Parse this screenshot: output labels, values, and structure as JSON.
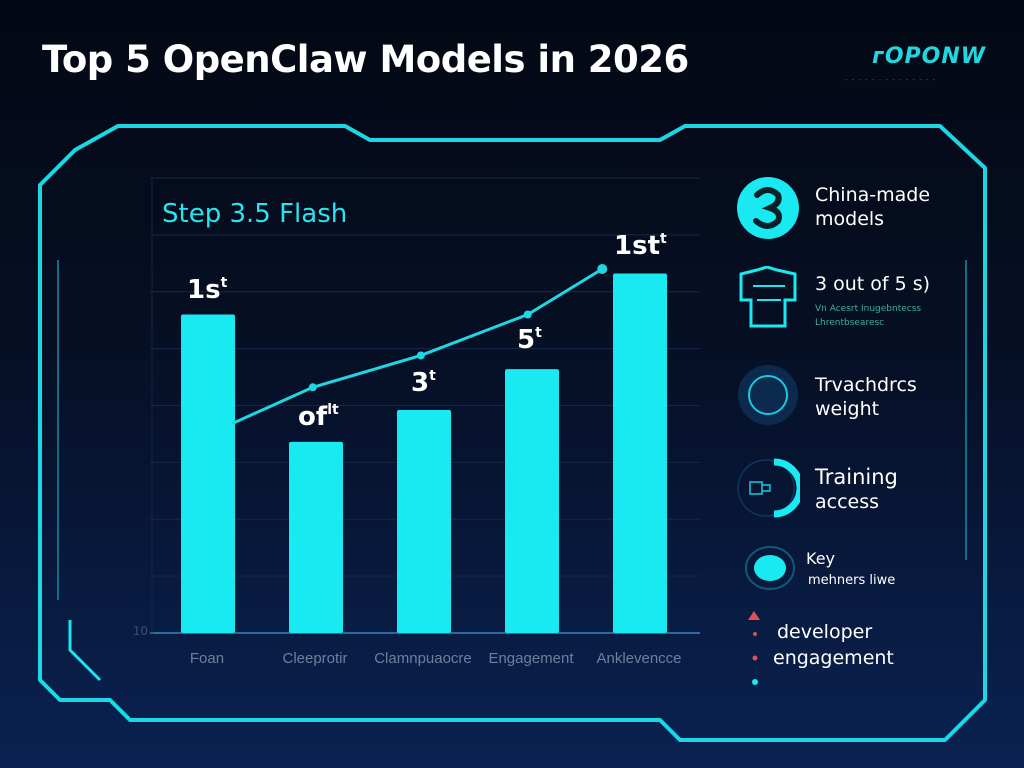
{
  "title": "Top 5 OpenClaw Models in 2026",
  "logo": {
    "text": "ᴦOPONW",
    "tagline": "- - - - - - - - - - - - - -"
  },
  "colors": {
    "accent": "#19e9f0",
    "background_top": "#040814",
    "background_bottom": "#0a2252",
    "marker_red": "#e0505a"
  },
  "chart_data": {
    "type": "bar",
    "title": "Step 3.5 Flash",
    "categories": [
      "Foan",
      "Cleeprotir",
      "Clamnpuaocre",
      "Engagement",
      "Anklevencce"
    ],
    "values": [
      70,
      42,
      49,
      58,
      79
    ],
    "bar_labels": [
      {
        "main": "1s",
        "sup": "t"
      },
      {
        "main": "of",
        "sup": "lt"
      },
      {
        "main": "3",
        "sup": "t"
      },
      {
        "main": "5",
        "sup": "t"
      },
      {
        "main": "1st",
        "sup": "t"
      }
    ],
    "line_series": {
      "x": [
        0.23,
        0.98,
        1.98,
        2.97,
        3.66
      ],
      "y": [
        46,
        54,
        61,
        70,
        80
      ]
    },
    "ylim": [
      0,
      100
    ],
    "y_tick_labels": [
      "10"
    ],
    "grid": true,
    "xlabel": "",
    "ylabel": ""
  },
  "sidebar": {
    "items": [
      {
        "icon": "number-3-icon",
        "lines": [
          "China-made",
          "models"
        ]
      },
      {
        "icon": "shirt-icon",
        "lines": [
          "3 out of 5 s)"
        ],
        "small": [
          "Vn Acesrt Inugebntecss",
          "Lhrentbsearesc"
        ]
      },
      {
        "icon": "ring-icon",
        "lines": [
          "Trvachdrcs",
          "weight"
        ]
      },
      {
        "icon": "access-dial-icon",
        "lines": [
          "Training",
          "access"
        ]
      },
      {
        "icon": "key-dot-icon",
        "lines": [
          "Key",
          "mehners liwe"
        ]
      }
    ],
    "legend": [
      "developer",
      "engagement"
    ]
  }
}
